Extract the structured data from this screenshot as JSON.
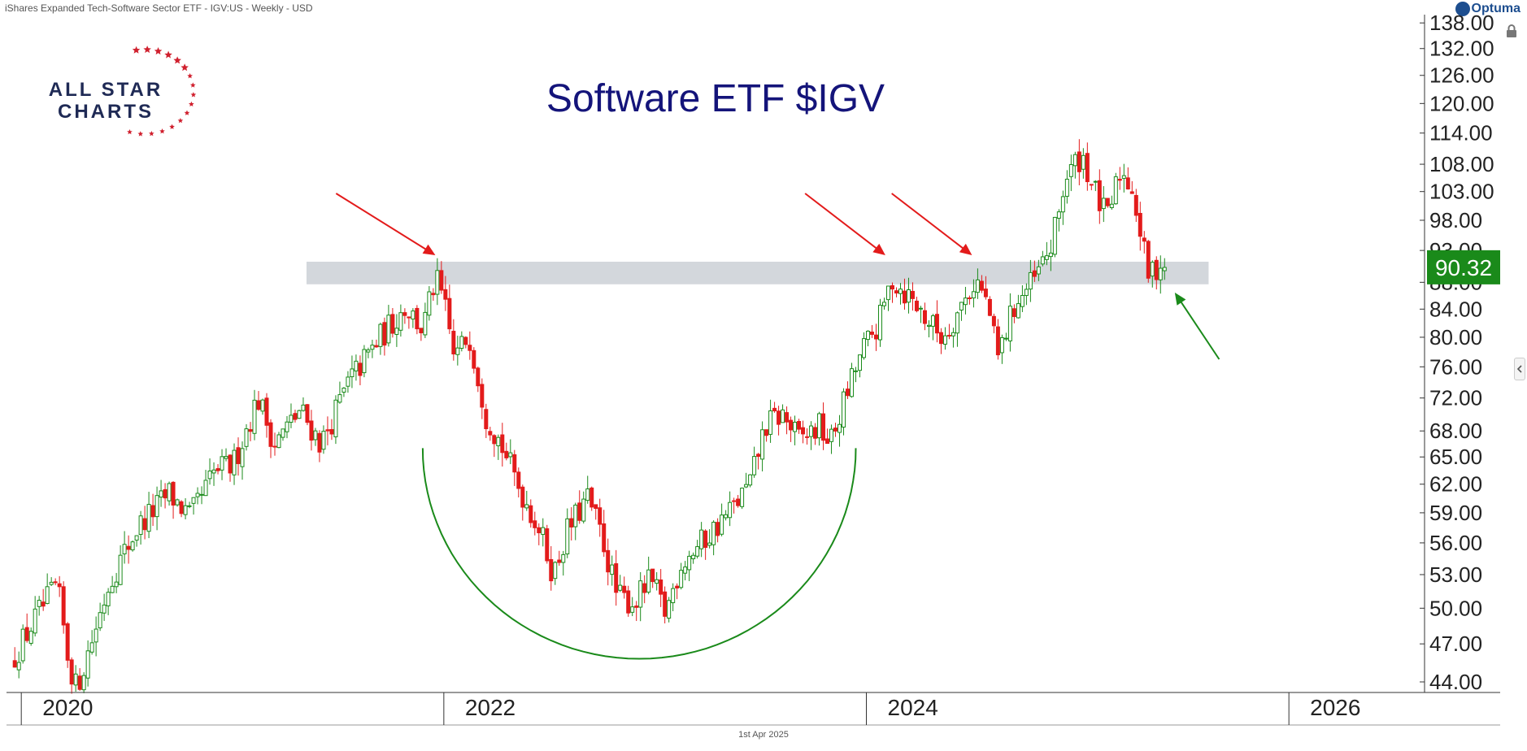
{
  "header": {
    "instrument_text": "iShares Expanded Tech-Software Sector ETF - IGV:US - Weekly - USD"
  },
  "brand": {
    "name": "Optuma"
  },
  "footer": {
    "date_text": "1st Apr 2025"
  },
  "logo": {
    "line1": "ALL STAR",
    "line2": "CHARTS"
  },
  "colors": {
    "up": "#1a8a1a",
    "down": "#e31b1b",
    "resistance_band": "#d3d7dc",
    "title": "#14147a",
    "arc": "#1a8a1a",
    "arrow_red": "#e31b1b",
    "arrow_green": "#1a8a1a",
    "price_tag_bg": "#1a8a1a"
  },
  "chart_data": {
    "type": "candlestick",
    "title": "Software ETF $IGV",
    "timeframe": "Weekly",
    "currency": "USD",
    "x_range": [
      2019.93,
      2027.0
    ],
    "x_ticks": [
      "2020",
      "2022",
      "2024",
      "2026"
    ],
    "y_scale": "log",
    "y_range": [
      43.2,
      140.0
    ],
    "y_ticks": [
      "44.00",
      "47.00",
      "50.00",
      "53.00",
      "56.00",
      "59.00",
      "62.00",
      "65.00",
      "68.00",
      "72.00",
      "76.00",
      "80.00",
      "84.00",
      "88.00",
      "93.00",
      "98.00",
      "103.00",
      "108.00",
      "114.00",
      "120.00",
      "126.00",
      "132.00",
      "138.00"
    ],
    "last_price": "90.32",
    "resistance_zone": {
      "low": 87.7,
      "high": 91.2,
      "x_start": 2021.35,
      "x_end": 2025.62
    },
    "rounding_bottom": {
      "x_start": 2021.9,
      "x_end": 2023.95,
      "low": 45.8,
      "top": 66.0
    },
    "price_path": [
      [
        2019.95,
        45.5
      ],
      [
        2020.08,
        49.5
      ],
      [
        2020.17,
        52.0
      ],
      [
        2020.22,
        46.0
      ],
      [
        2020.26,
        43.5
      ],
      [
        2020.32,
        46.5
      ],
      [
        2020.42,
        52.5
      ],
      [
        2020.55,
        57.5
      ],
      [
        2020.7,
        61.0
      ],
      [
        2020.8,
        58.5
      ],
      [
        2020.92,
        63.5
      ],
      [
        2021.0,
        64.0
      ],
      [
        2021.12,
        72.0
      ],
      [
        2021.2,
        66.5
      ],
      [
        2021.32,
        70.5
      ],
      [
        2021.42,
        66.5
      ],
      [
        2021.55,
        74.0
      ],
      [
        2021.7,
        80.0
      ],
      [
        2021.82,
        84.5
      ],
      [
        2021.9,
        81.0
      ],
      [
        2021.96,
        88.5
      ],
      [
        2022.0,
        85.0
      ],
      [
        2022.05,
        77.0
      ],
      [
        2022.12,
        80.5
      ],
      [
        2022.2,
        70.0
      ],
      [
        2022.28,
        66.0
      ],
      [
        2022.35,
        62.0
      ],
      [
        2022.45,
        57.5
      ],
      [
        2022.52,
        53.0
      ],
      [
        2022.58,
        57.0
      ],
      [
        2022.68,
        60.5
      ],
      [
        2022.75,
        56.5
      ],
      [
        2022.82,
        51.0
      ],
      [
        2022.9,
        50.5
      ],
      [
        2022.98,
        52.5
      ],
      [
        2023.05,
        49.5
      ],
      [
        2023.12,
        54.0
      ],
      [
        2023.22,
        56.0
      ],
      [
        2023.35,
        59.0
      ],
      [
        2023.45,
        62.0
      ],
      [
        2023.52,
        68.5
      ],
      [
        2023.6,
        70.0
      ],
      [
        2023.68,
        67.0
      ],
      [
        2023.78,
        68.5
      ],
      [
        2023.83,
        66.5
      ],
      [
        2023.9,
        72.0
      ],
      [
        2023.98,
        78.0
      ],
      [
        2024.06,
        82.0
      ],
      [
        2024.12,
        88.5
      ],
      [
        2024.2,
        86.0
      ],
      [
        2024.3,
        82.0
      ],
      [
        2024.36,
        80.0
      ],
      [
        2024.45,
        84.5
      ],
      [
        2024.52,
        88.5
      ],
      [
        2024.58,
        84.0
      ],
      [
        2024.62,
        77.0
      ],
      [
        2024.7,
        84.5
      ],
      [
        2024.8,
        88.5
      ],
      [
        2024.88,
        94.0
      ],
      [
        2024.94,
        105.0
      ],
      [
        2025.02,
        110.0
      ],
      [
        2025.08,
        103.0
      ],
      [
        2025.14,
        98.0
      ],
      [
        2025.2,
        106.5
      ],
      [
        2025.26,
        104.0
      ],
      [
        2025.3,
        95.0
      ],
      [
        2025.34,
        88.5
      ],
      [
        2025.38,
        91.0
      ],
      [
        2025.42,
        90.3
      ]
    ]
  }
}
